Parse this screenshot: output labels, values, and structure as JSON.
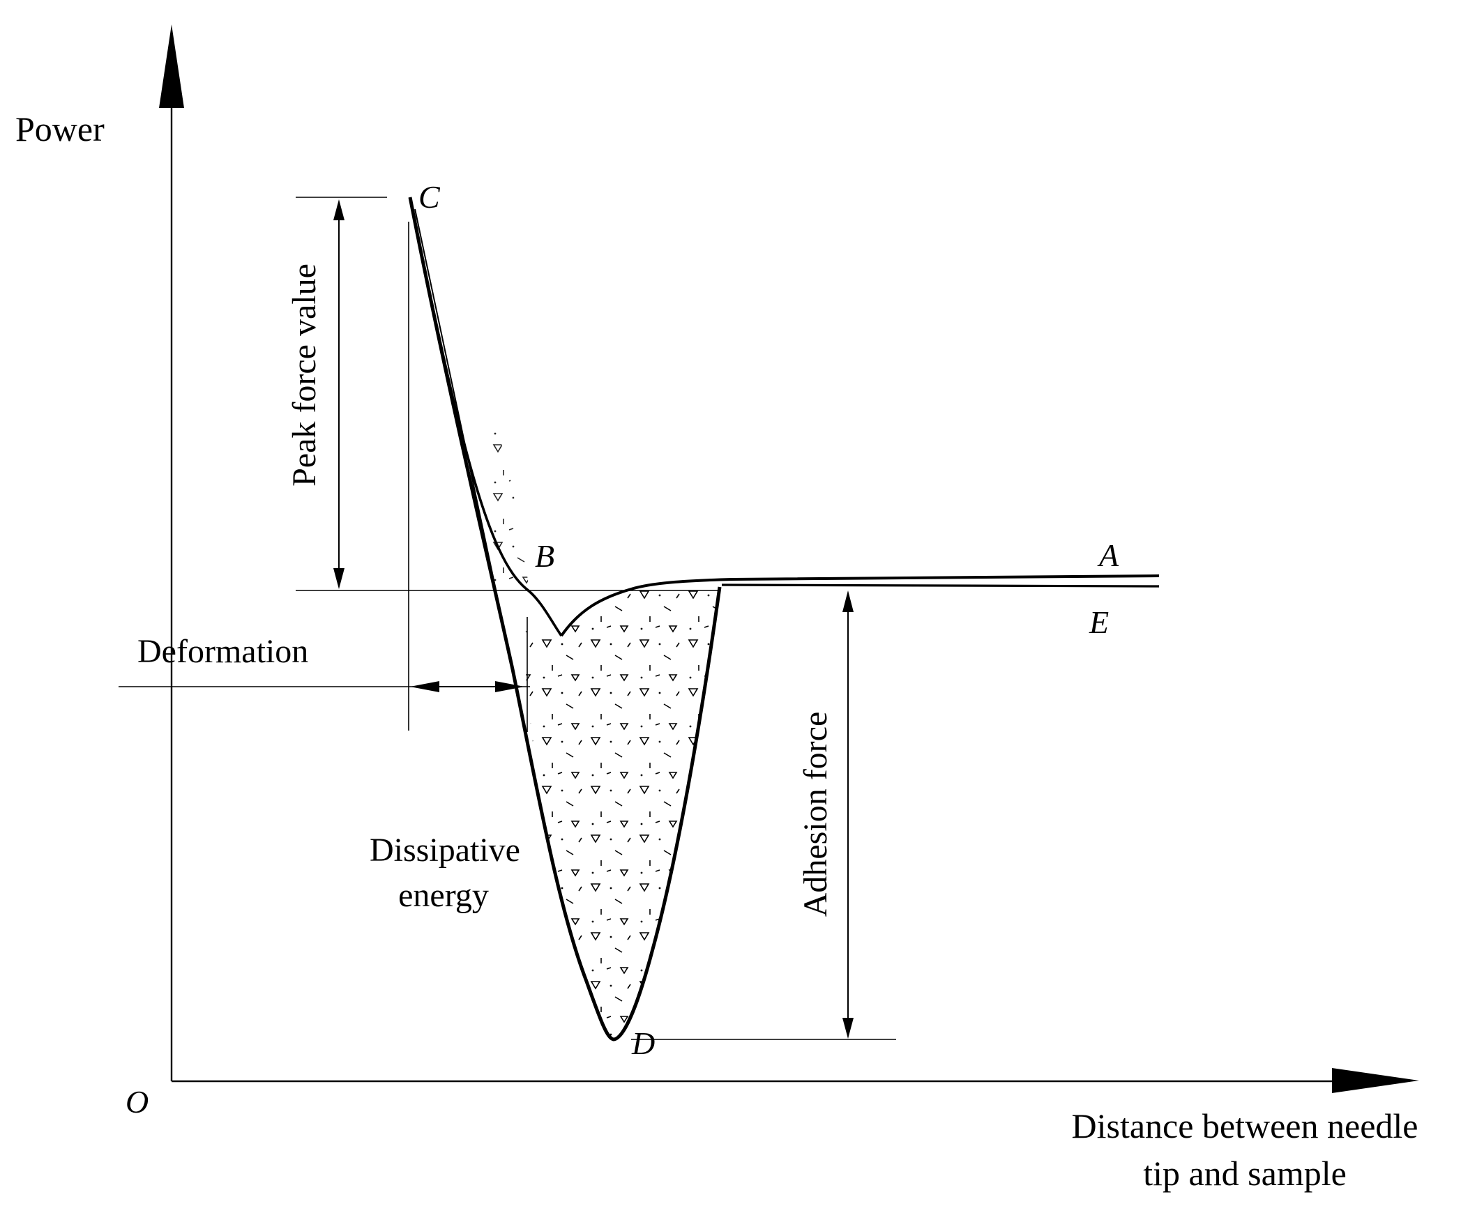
{
  "diagram": {
    "axes": {
      "y_label": "Power",
      "x_label_line1": "Distance between needle",
      "x_label_line2": "tip and sample",
      "origin_label": "O"
    },
    "points": {
      "a": "A",
      "b": "B",
      "c": "C",
      "d": "D",
      "e": "E"
    },
    "annotations": {
      "peak_force": "Peak force value",
      "deformation": "Deformation",
      "dissipative_line1": "Dissipative",
      "dissipative_line2": "energy",
      "adhesion_force": "Adhesion force"
    }
  }
}
